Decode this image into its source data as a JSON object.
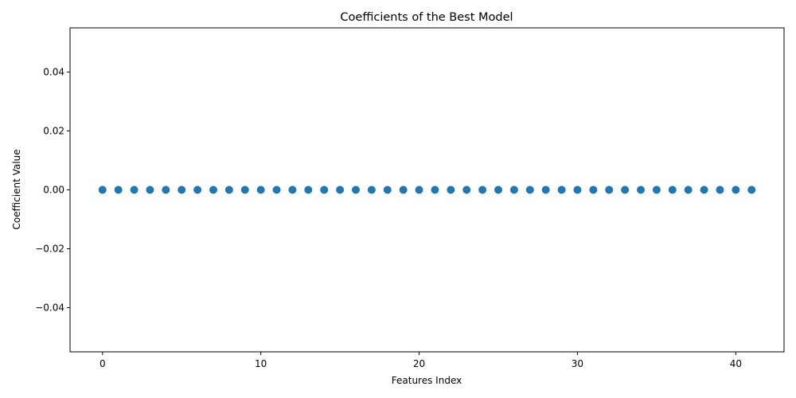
{
  "chart_data": {
    "type": "scatter",
    "title": "Coefficients of the Best Model",
    "xlabel": "Features Index",
    "ylabel": "Coefficient Value",
    "x": [
      0,
      1,
      2,
      3,
      4,
      5,
      6,
      7,
      8,
      9,
      10,
      11,
      12,
      13,
      14,
      15,
      16,
      17,
      18,
      19,
      20,
      21,
      22,
      23,
      24,
      25,
      26,
      27,
      28,
      29,
      30,
      31,
      32,
      33,
      34,
      35,
      36,
      37,
      38,
      39,
      40,
      41
    ],
    "y": [
      0,
      0,
      0,
      0,
      0,
      0,
      0,
      0,
      0,
      0,
      0,
      0,
      0,
      0,
      0,
      0,
      0,
      0,
      0,
      0,
      0,
      0,
      0,
      0,
      0,
      0,
      0,
      0,
      0,
      0,
      0,
      0,
      0,
      0,
      0,
      0,
      0,
      0,
      0,
      0,
      0,
      0
    ],
    "xlim": [
      -2.05,
      43.05
    ],
    "ylim": [
      -0.055,
      0.055
    ],
    "xticks": [
      0,
      10,
      20,
      30,
      40
    ],
    "xtick_labels": [
      "0",
      "10",
      "20",
      "30",
      "40"
    ],
    "yticks": [
      -0.04,
      -0.02,
      0.0,
      0.02,
      0.04
    ],
    "ytick_labels": [
      "−0.04",
      "−0.02",
      "0.00",
      "0.02",
      "0.04"
    ],
    "grid": false,
    "color": "#1f77b4"
  }
}
